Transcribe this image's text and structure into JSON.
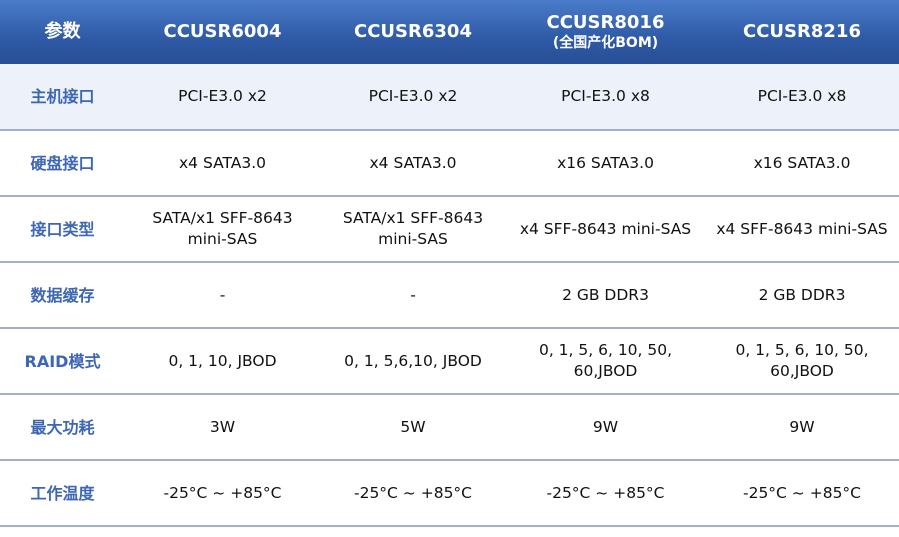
{
  "header": {
    "param": "参数",
    "models": [
      {
        "name": "CCUSR6004",
        "note": ""
      },
      {
        "name": "CCUSR6304",
        "note": ""
      },
      {
        "name": "CCUSR8016",
        "note": "(全国产化BOM)"
      },
      {
        "name": "CCUSR8216",
        "note": ""
      }
    ]
  },
  "rows": [
    {
      "label": "主机接口",
      "values": [
        "PCI-E3.0 x2",
        "PCI-E3.0 x2",
        "PCI-E3.0 x8",
        "PCI-E3.0 x8"
      ]
    },
    {
      "label": "硬盘接口",
      "values": [
        "x4 SATA3.0",
        "x4 SATA3.0",
        "x16 SATA3.0",
        "x16 SATA3.0"
      ]
    },
    {
      "label": "接口类型",
      "values": [
        "SATA/x1 SFF-8643 mini-SAS",
        "SATA/x1 SFF-8643 mini-SAS",
        "x4 SFF-8643 mini-SAS",
        "x4 SFF-8643 mini-SAS"
      ]
    },
    {
      "label": "数据缓存",
      "values": [
        "-",
        "-",
        "2 GB DDR3",
        "2 GB DDR3"
      ]
    },
    {
      "label": "RAID模式",
      "values": [
        "0, 1, 10, JBOD",
        "0, 1, 5,6,10, JBOD",
        "0, 1, 5, 6, 10, 50, 60,JBOD",
        "0, 1, 5, 6, 10, 50, 60,JBOD"
      ]
    },
    {
      "label": "最大功耗",
      "values": [
        "3W",
        "5W",
        "9W",
        "9W"
      ]
    },
    {
      "label": "工作温度",
      "values": [
        "-25°C ~ +85°C",
        "-25°C ~ +85°C",
        "-25°C ~ +85°C",
        "-25°C ~ +85°C"
      ]
    }
  ],
  "colors": {
    "header_bg": "#2f5aa6",
    "label_text": "#3d67b4",
    "first_row_bg": "#edf1f9",
    "divider": "#9fb0c8"
  }
}
